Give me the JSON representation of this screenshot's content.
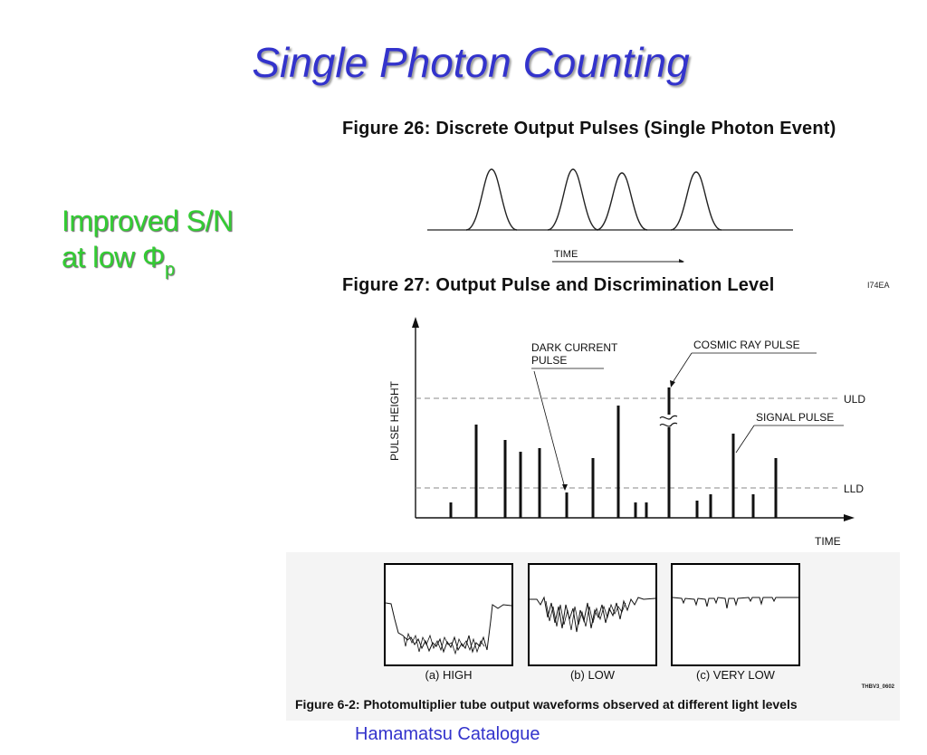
{
  "title": "Single Photon Counting",
  "side_note": {
    "line1": "Improved S/N",
    "line2_prefix": "at low ",
    "symbol": "Φ",
    "subscript": "p"
  },
  "figure26": {
    "caption": "Figure 26: Discrete Output Pulses (Single Photon Event)",
    "time_label": "TIME"
  },
  "figure27": {
    "caption": "Figure 27: Output Pulse and Discrimination Level",
    "code": "I74EA",
    "y_axis_label": "PULSE HEIGHT",
    "x_axis_label": "TIME",
    "uld_label": "ULD",
    "lld_label": "LLD",
    "dark_current_label_1": "DARK CURRENT",
    "dark_current_label_2": "PULSE",
    "cosmic_ray_label": "COSMIC RAY PULSE",
    "signal_label": "SIGNAL PULSE"
  },
  "figure62": {
    "caption": "Figure 6-2: Photomultiplier tube output waveforms observed at different light levels",
    "code": "THBV3_0602",
    "labels": [
      "(a) HIGH",
      "(b) LOW",
      "(c) VERY LOW"
    ]
  },
  "credit": "Hamamatsu Catalogue"
}
